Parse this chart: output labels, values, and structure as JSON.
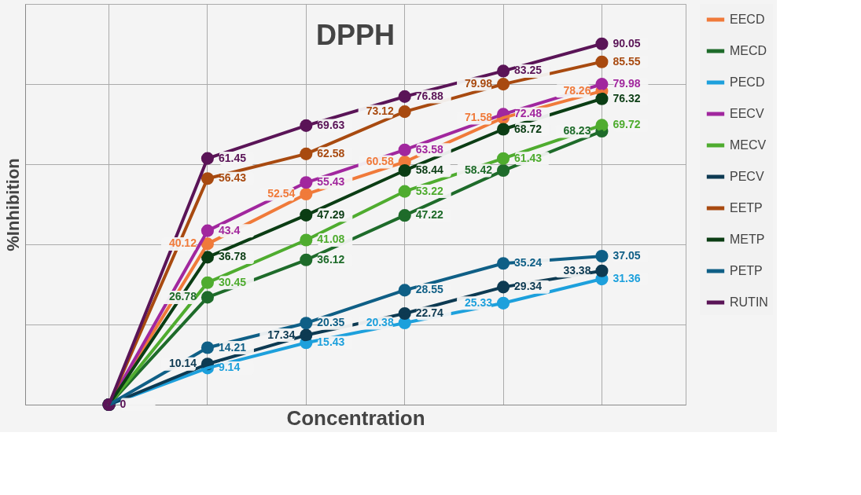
{
  "chart_data": {
    "type": "line",
    "title": "DPPH",
    "xlabel": "Concentration",
    "ylabel": "%Inhibition",
    "categories": [
      null,
      null,
      null,
      null,
      null,
      null
    ],
    "ylim": [
      0,
      100
    ],
    "yticks": [
      {
        "value": 0,
        "label": null
      },
      {
        "value": 20,
        "label": null
      },
      {
        "value": 40,
        "label": null
      },
      {
        "value": 60,
        "label": null
      },
      {
        "value": 80,
        "label": null
      },
      {
        "value": 100,
        "label": null
      }
    ],
    "tick_labels": false,
    "grid": true,
    "legend": "right",
    "marker": "circle",
    "series": [
      {
        "name": "EECD",
        "color": "#f07a3a",
        "values": [
          0,
          40.12,
          52.54,
          60.58,
          71.58,
          78.26
        ],
        "value_labels": [
          null,
          "40.12",
          "52.54",
          "60.58",
          "71.58",
          "78.26"
        ]
      },
      {
        "name": "MECD",
        "color": "#1e6b2a",
        "values": [
          0,
          26.78,
          36.12,
          47.22,
          58.42,
          68.23
        ],
        "value_labels": [
          null,
          "26.78",
          "36.12",
          "47.22",
          "58.42",
          "68.23"
        ]
      },
      {
        "name": "PECD",
        "color": "#1da0dc",
        "values": [
          0,
          9.14,
          15.43,
          20.38,
          25.33,
          31.36
        ],
        "value_labels": [
          null,
          "9.14",
          "15.43",
          "20.38",
          "25.33",
          "31.36"
        ]
      },
      {
        "name": "EECV",
        "color": "#a1279e",
        "values": [
          0,
          43.4,
          55.43,
          63.58,
          72.48,
          79.98
        ],
        "value_labels": [
          null,
          "43.4",
          "55.43",
          "63.58",
          "72.48",
          "79.98"
        ]
      },
      {
        "name": "MECV",
        "color": "#4fac2f",
        "values": [
          0,
          30.45,
          41.08,
          53.22,
          61.43,
          69.72
        ],
        "value_labels": [
          null,
          "30.45",
          "41.08",
          "53.22",
          "61.43",
          "69.72"
        ]
      },
      {
        "name": "PECV",
        "color": "#0d3a52",
        "values": [
          0,
          10.14,
          17.34,
          22.74,
          29.34,
          33.38
        ],
        "value_labels": [
          null,
          "10.14",
          "17.34",
          "22.74",
          "29.34",
          "33.38"
        ]
      },
      {
        "name": "EETP",
        "color": "#a84a10",
        "values": [
          0,
          56.43,
          62.58,
          73.12,
          79.98,
          85.55
        ],
        "value_labels": [
          null,
          "56.43",
          "62.58",
          "73.12",
          "79.98",
          "85.55"
        ]
      },
      {
        "name": "METP",
        "color": "#0b3d14",
        "values": [
          0,
          36.78,
          47.29,
          58.44,
          68.72,
          76.32
        ],
        "value_labels": [
          null,
          "36.78",
          "47.29",
          "58.44",
          "68.72",
          "76.32"
        ]
      },
      {
        "name": "PETP",
        "color": "#0f5f86",
        "values": [
          0,
          14.21,
          20.35,
          28.55,
          35.24,
          37.05
        ],
        "value_labels": [
          null,
          "14.21",
          "20.35",
          "28.55",
          "35.24",
          "37.05"
        ]
      },
      {
        "name": "RUTIN",
        "color": "#5a1457",
        "values": [
          0,
          61.45,
          69.63,
          76.88,
          83.25,
          90.05
        ],
        "value_labels": [
          "0",
          "61.45",
          "69.63",
          "76.88",
          "83.25",
          "90.05"
        ]
      }
    ]
  }
}
